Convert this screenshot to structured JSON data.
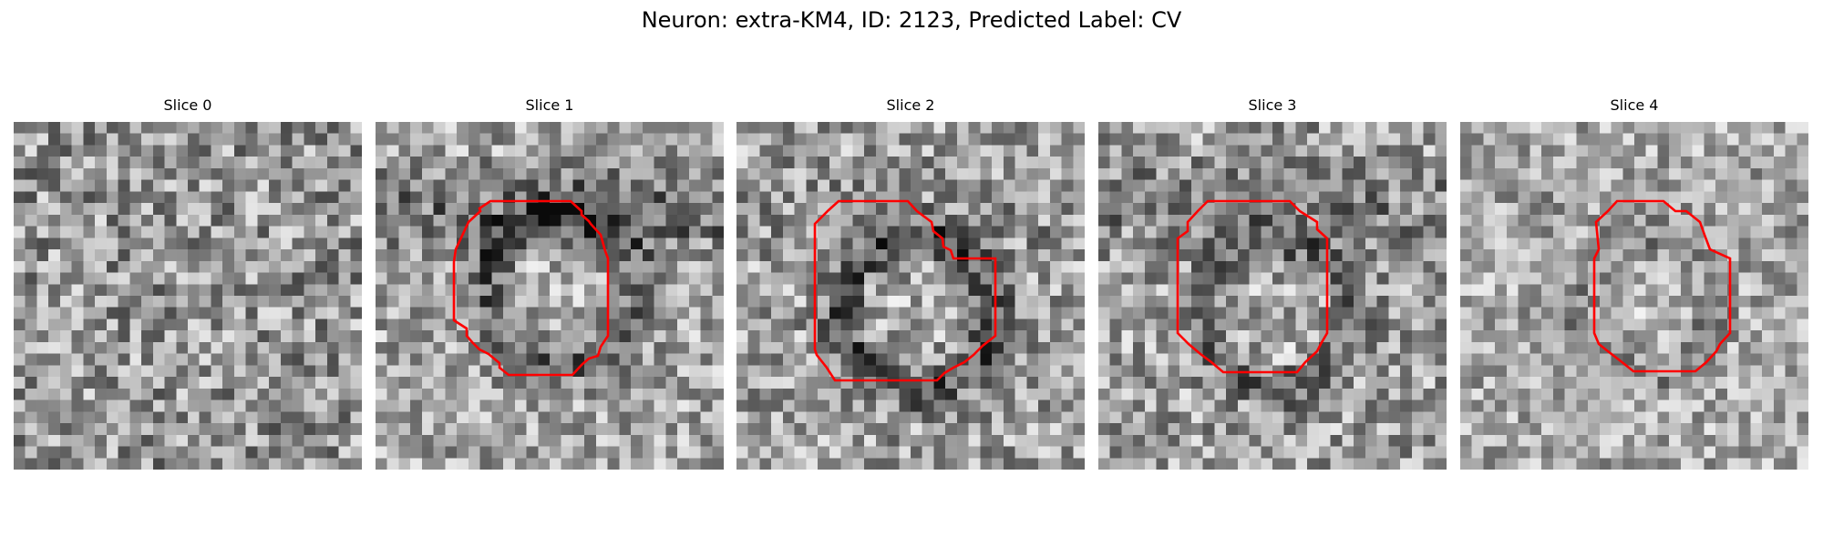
{
  "figure": {
    "title": "Neuron: extra-KM4, ID: 2123, Predicted Label: CV"
  },
  "colors": {
    "contour": "#ff0000",
    "background": "#ffffff"
  },
  "slices": [
    {
      "title": "Slice 0",
      "has_contour": false
    },
    {
      "title": "Slice 1",
      "has_contour": true
    },
    {
      "title": "Slice 2",
      "has_contour": true
    },
    {
      "title": "Slice 3",
      "has_contour": true
    },
    {
      "title": "Slice 4",
      "has_contour": true
    }
  ]
}
